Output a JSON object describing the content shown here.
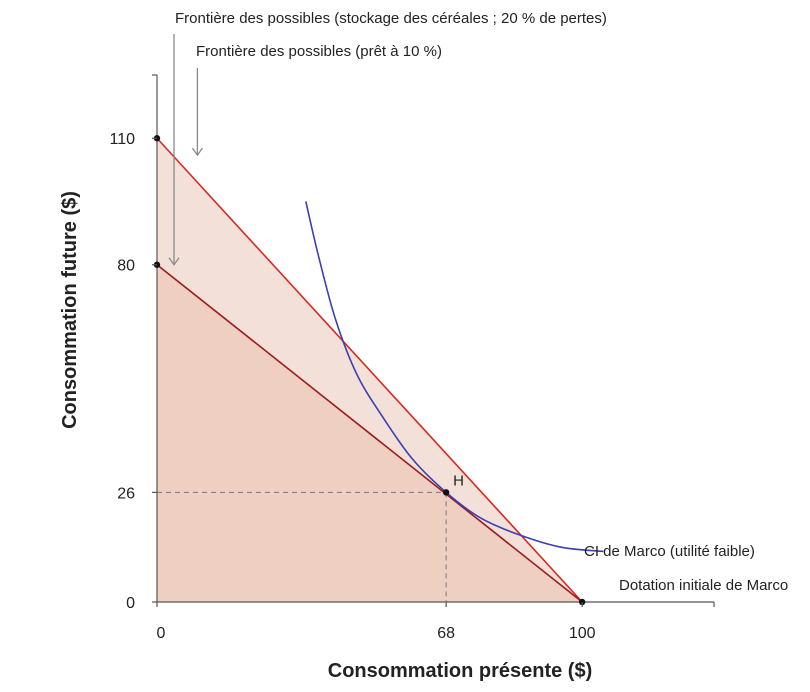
{
  "chart_data": {
    "type": "line",
    "title": "",
    "xlabel": "Consommation présente ($)",
    "ylabel": "Consommation future ($)",
    "xlim": [
      0,
      131
    ],
    "ylim": [
      0,
      125
    ],
    "grid": false,
    "x_ticks": [
      0,
      68,
      100
    ],
    "x_tick_labels": [
      "0",
      "68",
      "100"
    ],
    "y_ticks": [
      0,
      26,
      80,
      110
    ],
    "y_tick_labels": [
      "0",
      "26",
      "80",
      "110"
    ],
    "series": [
      {
        "name": "Frontière des possibles (prêt à 10 %)",
        "points": [
          [
            0,
            110
          ],
          [
            100,
            0
          ]
        ],
        "color": "#d9281e",
        "fill": "#f3e1d9"
      },
      {
        "name": "Frontière des possibles (stockage des céréales ; 20 % de pertes)",
        "points": [
          [
            0,
            80
          ],
          [
            100,
            0
          ]
        ],
        "color": "#9b1c1c",
        "fill": "#efcfc2"
      },
      {
        "name": "CI de Marco (utilité faible)",
        "points": [
          [
            35,
            95
          ],
          [
            38,
            82
          ],
          [
            42,
            67
          ],
          [
            47,
            54
          ],
          [
            53,
            44
          ],
          [
            60,
            34
          ],
          [
            68,
            26
          ],
          [
            76,
            20
          ],
          [
            85,
            16
          ],
          [
            95,
            13
          ],
          [
            105,
            12
          ]
        ],
        "color": "#3b3fb3"
      }
    ],
    "points": [
      {
        "label": "",
        "x": 0,
        "y": 110
      },
      {
        "label": "",
        "x": 0,
        "y": 80
      },
      {
        "label": "H",
        "x": 68,
        "y": 26
      },
      {
        "label": "",
        "x": 100,
        "y": 0
      }
    ],
    "annotations": [
      {
        "text": "Frontière des possibles (stockage des céréales ; 20 % de pertes)",
        "arrow_to": [
          4,
          80
        ]
      },
      {
        "text": "Frontière des possibles (prêt à 10 %)",
        "arrow_to": [
          9.5,
          106
        ]
      },
      {
        "text": "CI de Marco (utilité faible)"
      },
      {
        "text": "Dotation initiale de Marco"
      }
    ],
    "colors": {
      "axis": "#555555",
      "guide": "#777777",
      "arrow": "#8a8a8a",
      "point": "#111111"
    }
  }
}
